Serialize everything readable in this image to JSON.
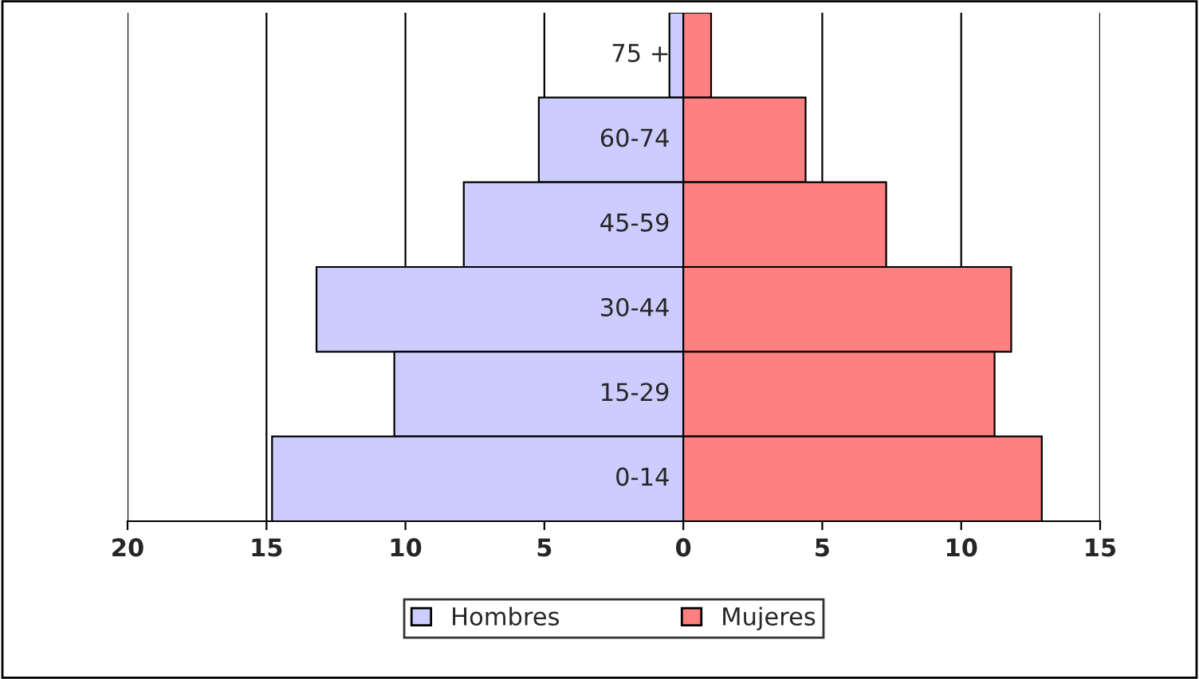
{
  "chart_data": {
    "type": "bar",
    "orientation": "horizontal",
    "stacked": true,
    "categories": [
      "75 +",
      "60-74",
      "45-59",
      "30-44",
      "15-29",
      "0-14"
    ],
    "series": [
      {
        "name": "Hombres",
        "color": "#ccccff",
        "values": [
          -0.5,
          -5.2,
          -7.9,
          -13.2,
          -10.4,
          -14.8
        ]
      },
      {
        "name": "Mujeres",
        "color": "#ff8080",
        "values": [
          1.0,
          4.4,
          7.3,
          11.8,
          11.2,
          12.9
        ]
      }
    ],
    "xlim": [
      -20,
      15
    ],
    "xticks": [
      {
        "value": -20,
        "label": "20"
      },
      {
        "value": -15,
        "label": "15"
      },
      {
        "value": -10,
        "label": "10"
      },
      {
        "value": -5,
        "label": "5"
      },
      0,
      5,
      10,
      15
    ],
    "grid": "x",
    "legend": "bottom"
  }
}
